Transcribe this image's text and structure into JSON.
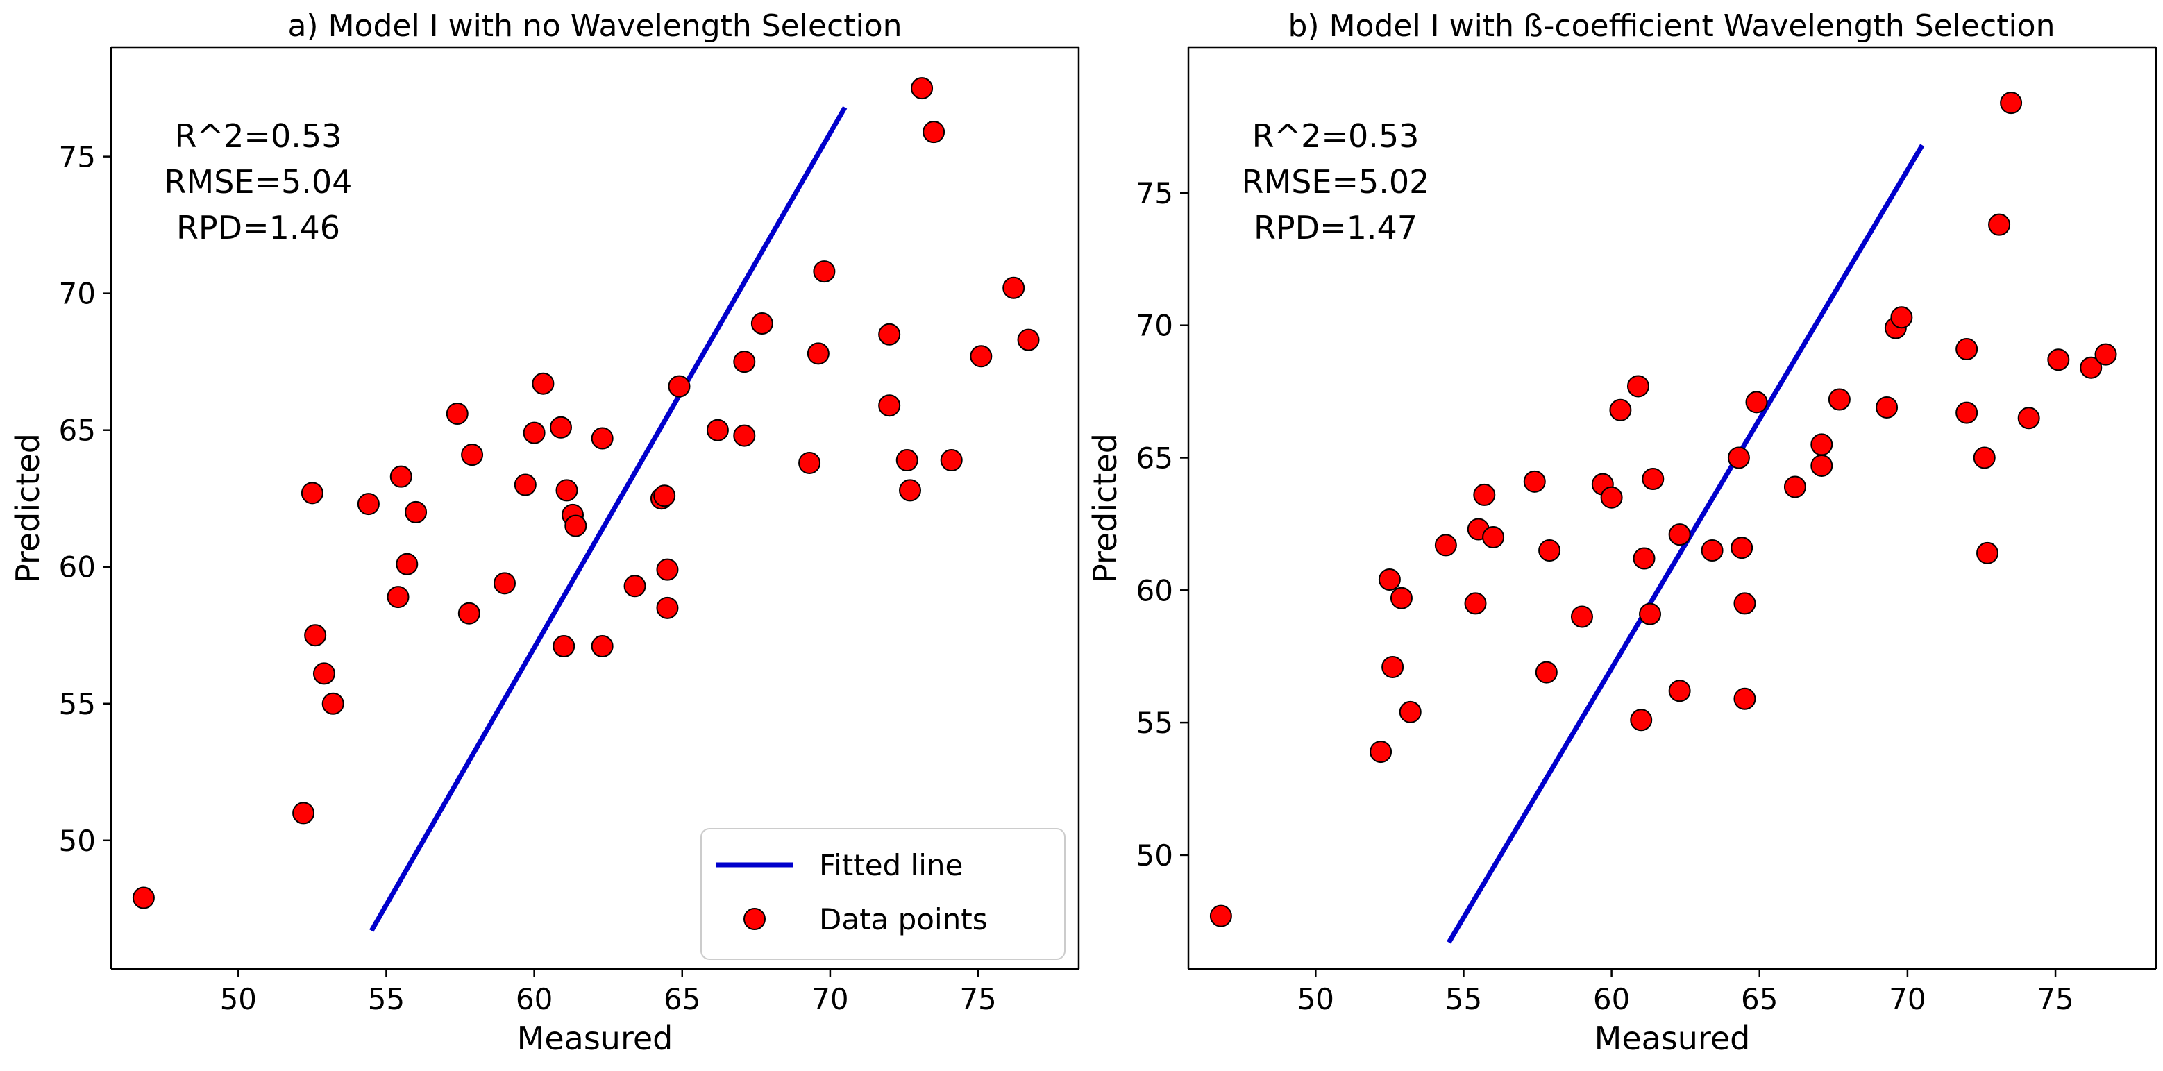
{
  "chart_data": [
    {
      "type": "scatter",
      "title": "a) Model I with no Wavelength Selection",
      "xlabel": "Measured",
      "ylabel": "Predicted",
      "xlim": [
        45.7,
        78.4
      ],
      "ylim": [
        45.3,
        79.0
      ],
      "xticks": [
        50,
        55,
        60,
        65,
        70,
        75
      ],
      "yticks": [
        50,
        55,
        60,
        65,
        70,
        75
      ],
      "grid": false,
      "stats": [
        "R^2=0.53",
        "RMSE=5.04",
        "RPD=1.46"
      ],
      "legend": {
        "placement": "bottom-right",
        "entries": [
          "Fitted line",
          "Data points"
        ]
      },
      "fitted_line": {
        "x": [
          54.5,
          70.5
        ],
        "y": [
          46.7,
          76.8
        ]
      },
      "series": [
        {
          "name": "Data points",
          "color": "#ff0000",
          "points": [
            [
              46.8,
              47.9
            ],
            [
              52.2,
              51.0
            ],
            [
              52.5,
              62.7
            ],
            [
              52.6,
              57.5
            ],
            [
              52.9,
              56.1
            ],
            [
              53.2,
              55.0
            ],
            [
              54.4,
              62.3
            ],
            [
              55.4,
              58.9
            ],
            [
              55.5,
              63.3
            ],
            [
              55.7,
              60.1
            ],
            [
              56.0,
              62.0
            ],
            [
              57.4,
              65.6
            ],
            [
              57.8,
              58.3
            ],
            [
              57.9,
              64.1
            ],
            [
              59.0,
              59.4
            ],
            [
              59.7,
              63.0
            ],
            [
              60.0,
              64.9
            ],
            [
              60.3,
              66.7
            ],
            [
              60.9,
              65.1
            ],
            [
              61.0,
              57.1
            ],
            [
              61.1,
              62.8
            ],
            [
              61.3,
              61.9
            ],
            [
              61.4,
              61.5
            ],
            [
              62.3,
              57.1
            ],
            [
              62.3,
              64.7
            ],
            [
              63.4,
              59.3
            ],
            [
              64.3,
              62.5
            ],
            [
              64.4,
              62.6
            ],
            [
              64.5,
              59.9
            ],
            [
              64.5,
              58.5
            ],
            [
              64.9,
              66.6
            ],
            [
              66.2,
              65.0
            ],
            [
              67.1,
              64.8
            ],
            [
              67.1,
              67.5
            ],
            [
              67.7,
              68.9
            ],
            [
              69.3,
              63.8
            ],
            [
              69.6,
              67.8
            ],
            [
              69.8,
              70.8
            ],
            [
              72.0,
              68.5
            ],
            [
              72.0,
              65.9
            ],
            [
              72.6,
              63.9
            ],
            [
              72.7,
              62.8
            ],
            [
              73.1,
              77.5
            ],
            [
              73.5,
              75.9
            ],
            [
              74.1,
              63.9
            ],
            [
              75.1,
              67.7
            ],
            [
              76.2,
              70.2
            ],
            [
              76.7,
              68.3
            ]
          ]
        }
      ]
    },
    {
      "type": "scatter",
      "title": "b) Model I with ß-coefficient Wavelength Selection",
      "xlabel": "Measured",
      "ylabel": "Predicted",
      "xlim": [
        45.7,
        78.4
      ],
      "ylim": [
        45.7,
        80.5
      ],
      "xticks": [
        50,
        55,
        60,
        65,
        70,
        75
      ],
      "yticks": [
        50,
        55,
        60,
        65,
        70,
        75
      ],
      "grid": false,
      "stats": [
        "R^2=0.53",
        "RMSE=5.02",
        "RPD=1.47"
      ],
      "legend": null,
      "fitted_line": {
        "x": [
          54.5,
          70.5
        ],
        "y": [
          46.7,
          76.8
        ]
      },
      "series": [
        {
          "name": "Data points",
          "color": "#ff0000",
          "points": [
            [
              46.8,
              47.7
            ],
            [
              52.2,
              53.9
            ],
            [
              52.5,
              60.4
            ],
            [
              52.6,
              57.1
            ],
            [
              52.9,
              59.7
            ],
            [
              53.2,
              55.4
            ],
            [
              54.4,
              61.7
            ],
            [
              55.4,
              59.5
            ],
            [
              55.5,
              62.3
            ],
            [
              55.7,
              63.6
            ],
            [
              56.0,
              62.0
            ],
            [
              57.4,
              64.1
            ],
            [
              57.8,
              56.9
            ],
            [
              57.9,
              61.5
            ],
            [
              59.0,
              59.0
            ],
            [
              59.7,
              64.0
            ],
            [
              60.0,
              63.5
            ],
            [
              60.3,
              66.8
            ],
            [
              60.9,
              67.7
            ],
            [
              61.0,
              55.1
            ],
            [
              61.1,
              61.2
            ],
            [
              61.3,
              59.1
            ],
            [
              61.4,
              64.2
            ],
            [
              62.3,
              62.1
            ],
            [
              62.3,
              56.2
            ],
            [
              63.4,
              61.5
            ],
            [
              64.3,
              65.0
            ],
            [
              64.4,
              61.6
            ],
            [
              64.5,
              59.5
            ],
            [
              64.5,
              55.9
            ],
            [
              64.9,
              67.1
            ],
            [
              66.2,
              63.9
            ],
            [
              67.1,
              64.7
            ],
            [
              67.1,
              65.5
            ],
            [
              67.7,
              67.2
            ],
            [
              69.3,
              66.9
            ],
            [
              69.6,
              69.9
            ],
            [
              69.8,
              70.3
            ],
            [
              72.0,
              69.1
            ],
            [
              72.0,
              66.7
            ],
            [
              72.6,
              65.0
            ],
            [
              72.7,
              61.4
            ],
            [
              73.1,
              73.8
            ],
            [
              73.5,
              78.4
            ],
            [
              74.1,
              66.5
            ],
            [
              75.1,
              68.7
            ],
            [
              76.2,
              68.4
            ],
            [
              76.7,
              68.9
            ]
          ]
        }
      ]
    }
  ]
}
